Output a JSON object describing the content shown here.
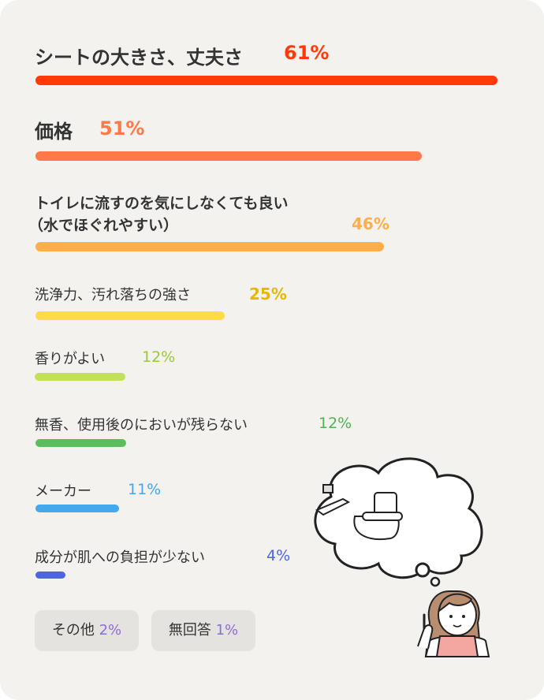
{
  "chart_data": {
    "type": "bar",
    "orientation": "horizontal",
    "unit": "%",
    "items": [
      {
        "label": "シートの大きさ、丈夫さ",
        "value": 61,
        "value_label": "61%",
        "color": "#ff3a06"
      },
      {
        "label": "価格",
        "value": 51,
        "value_label": "51%",
        "color": "#ff7848"
      },
      {
        "label": "トイレに流すのを気にしなくても良い",
        "label2": "（水でほぐれやすい）",
        "value": 46,
        "value_label": "46%",
        "color": "#ffae4a"
      },
      {
        "label": "洗浄力、汚れ落ちの強さ",
        "value": 25,
        "value_label": "25%",
        "color": "#ffdc45",
        "pct_color": "#e8b800"
      },
      {
        "label": "香りがよい",
        "value": 12,
        "value_label": "12%",
        "color": "#c2e05a",
        "pct_color": "#98c93a"
      },
      {
        "label": "無香、使用後のにおいが残らない",
        "value": 12,
        "value_label": "12%",
        "color": "#5cbd5c",
        "pct_color": "#4fb34f"
      },
      {
        "label": "メーカー",
        "value": 11,
        "value_label": "11%",
        "color": "#43a8ee"
      },
      {
        "label": "成分が肌への負担が少ない",
        "value": 4,
        "value_label": "4%",
        "color": "#4e63e6"
      }
    ],
    "others": [
      {
        "label": "その他",
        "value_label": "2%"
      },
      {
        "label": "無回答",
        "value_label": "1%"
      }
    ]
  }
}
